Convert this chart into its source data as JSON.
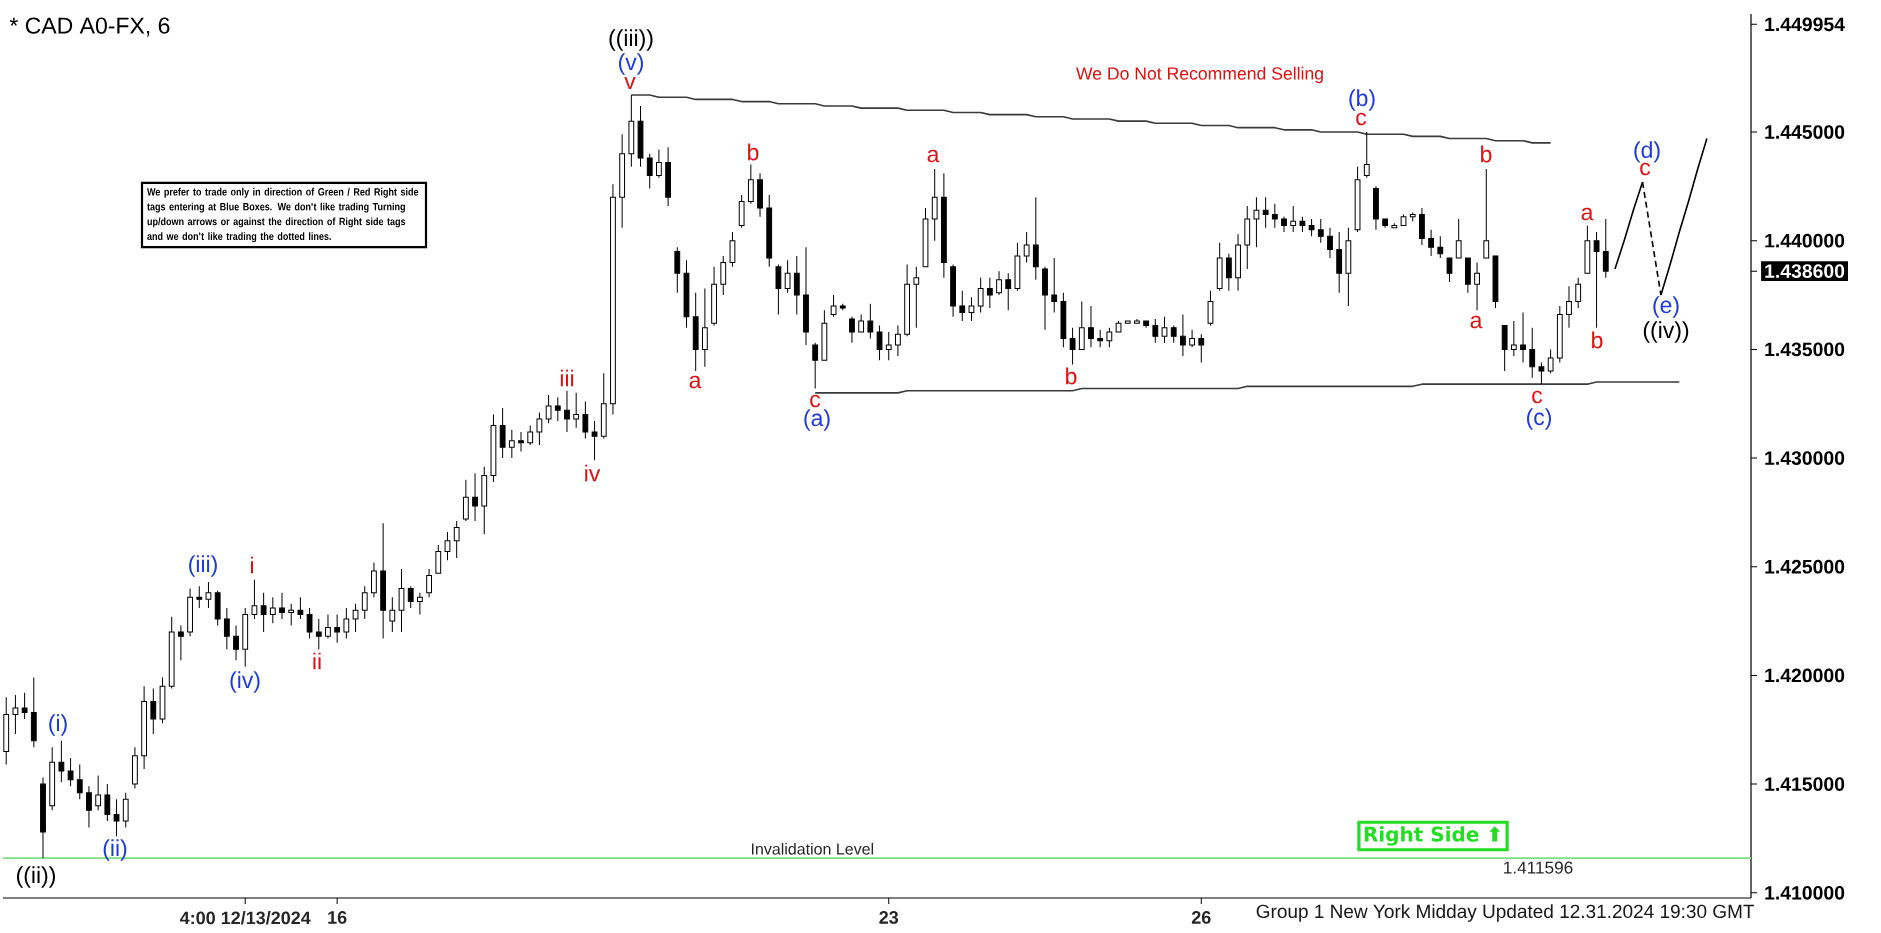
{
  "chart_data": {
    "type": "candlestick",
    "title": "* CAD A0-FX, 6",
    "color": "#000000",
    "categories": [
      null,
      null,
      null,
      null,
      null,
      null,
      null,
      null,
      null,
      null,
      null,
      null,
      null,
      null,
      null,
      null,
      null,
      null,
      null,
      null,
      null,
      null,
      null,
      null,
      null,
      null,
      "4:00 12/13/2024",
      null,
      null,
      null,
      null,
      null,
      null,
      null,
      null,
      null,
      "16",
      null,
      null,
      null,
      null,
      null,
      null,
      null,
      null,
      null,
      null,
      null,
      null,
      null,
      null,
      null,
      null,
      null,
      null,
      null,
      null,
      null,
      null,
      null,
      null,
      null,
      null,
      null,
      null,
      null,
      null,
      null,
      null,
      null,
      null,
      null,
      null,
      null,
      null,
      null,
      null,
      null,
      null,
      null,
      null,
      null,
      null,
      null,
      null,
      null,
      null,
      null,
      null,
      null,
      null,
      null,
      null,
      null,
      null,
      null,
      "23",
      null,
      null,
      null,
      null,
      null,
      null,
      null,
      null,
      null,
      null,
      null,
      null,
      null,
      null,
      null,
      null,
      null,
      null,
      null,
      null,
      null,
      null,
      null,
      null,
      null,
      null,
      null,
      null,
      null,
      null,
      null,
      null,
      null,
      "26",
      null,
      null,
      null,
      null,
      null,
      null,
      null,
      null,
      null,
      null,
      null,
      null,
      null,
      null,
      null,
      null,
      null,
      null,
      null,
      null,
      null,
      null,
      null,
      null,
      null,
      null,
      null,
      null,
      null,
      null,
      null,
      null,
      null,
      null,
      null,
      null,
      null,
      null,
      null,
      null,
      null,
      null,
      null,
      null,
      null,
      null,
      null,
      null,
      null,
      null,
      null,
      null,
      null,
      null,
      null,
      null,
      null,
      null,
      null
    ],
    "ohlc": [
      [
        1.4165,
        1.419,
        1.4159,
        1.4182
      ],
      [
        1.4182,
        1.4191,
        1.4173,
        1.4185
      ],
      [
        1.4185,
        1.4192,
        1.418,
        1.4183
      ],
      [
        1.4183,
        1.4199,
        1.4167,
        1.417
      ],
      [
        1.415,
        1.4153,
        1.4116,
        1.4128
      ],
      [
        1.414,
        1.4167,
        1.4138,
        1.416
      ],
      [
        1.416,
        1.417,
        1.4151,
        1.4156
      ],
      [
        1.4156,
        1.4162,
        1.4149,
        1.4152
      ],
      [
        1.4152,
        1.4159,
        1.4143,
        1.4146
      ],
      [
        1.4146,
        1.4149,
        1.413,
        1.4138
      ],
      [
        1.414,
        1.4154,
        1.4138,
        1.4145
      ],
      [
        1.4145,
        1.415,
        1.4133,
        1.4136
      ],
      [
        1.4136,
        1.4143,
        1.4126,
        1.4133
      ],
      [
        1.4133,
        1.4146,
        1.413,
        1.4143
      ],
      [
        1.415,
        1.4167,
        1.4148,
        1.4163
      ],
      [
        1.4163,
        1.4195,
        1.4157,
        1.4188
      ],
      [
        1.4188,
        1.4194,
        1.4173,
        1.418
      ],
      [
        1.418,
        1.4199,
        1.4178,
        1.4195
      ],
      [
        1.4195,
        1.4227,
        1.4194,
        1.422
      ],
      [
        1.422,
        1.4223,
        1.4207,
        1.4218
      ],
      [
        1.422,
        1.424,
        1.4218,
        1.4236
      ],
      [
        1.4236,
        1.4241,
        1.4231,
        1.4235
      ],
      [
        1.4235,
        1.4243,
        1.4231,
        1.4238
      ],
      [
        1.4238,
        1.4239,
        1.4223,
        1.4226
      ],
      [
        1.4226,
        1.4231,
        1.4212,
        1.4218
      ],
      [
        1.4218,
        1.4223,
        1.4207,
        1.4212
      ],
      [
        1.4212,
        1.4231,
        1.4204,
        1.4228
      ],
      [
        1.4228,
        1.4244,
        1.4226,
        1.4232
      ],
      [
        1.4232,
        1.4238,
        1.422,
        1.4228
      ],
      [
        1.4228,
        1.4236,
        1.4224,
        1.4231
      ],
      [
        1.4231,
        1.4238,
        1.4226,
        1.4229
      ],
      [
        1.4229,
        1.4233,
        1.4223,
        1.423
      ],
      [
        1.423,
        1.4236,
        1.4226,
        1.4228
      ],
      [
        1.4228,
        1.4231,
        1.4217,
        1.422
      ],
      [
        1.422,
        1.4226,
        1.4212,
        1.4218
      ],
      [
        1.4218,
        1.4228,
        1.4217,
        1.4222
      ],
      [
        1.4222,
        1.4228,
        1.4215,
        1.422
      ],
      [
        1.422,
        1.4231,
        1.4217,
        1.4226
      ],
      [
        1.4226,
        1.4233,
        1.422,
        1.423
      ],
      [
        1.423,
        1.4241,
        1.4226,
        1.4238
      ],
      [
        1.4238,
        1.4252,
        1.4236,
        1.4248
      ],
      [
        1.4248,
        1.427,
        1.4217,
        1.423
      ],
      [
        1.4225,
        1.4236,
        1.422,
        1.423
      ],
      [
        1.423,
        1.4249,
        1.422,
        1.424
      ],
      [
        1.424,
        1.4241,
        1.4231,
        1.4234
      ],
      [
        1.4234,
        1.4238,
        1.4228,
        1.4236
      ],
      [
        1.4238,
        1.4249,
        1.4236,
        1.4246
      ],
      [
        1.4247,
        1.426,
        1.4247,
        1.4257
      ],
      [
        1.4257,
        1.4266,
        1.4253,
        1.4262
      ],
      [
        1.4262,
        1.4271,
        1.4254,
        1.4268
      ],
      [
        1.4272,
        1.429,
        1.4271,
        1.4282
      ],
      [
        1.4282,
        1.4293,
        1.4271,
        1.4278
      ],
      [
        1.4278,
        1.4296,
        1.4265,
        1.4292
      ],
      [
        1.4292,
        1.432,
        1.4289,
        1.4315
      ],
      [
        1.4315,
        1.4323,
        1.43,
        1.4305
      ],
      [
        1.4305,
        1.4313,
        1.43,
        1.4308
      ],
      [
        1.4308,
        1.4312,
        1.4303,
        1.4307
      ],
      [
        1.4307,
        1.4315,
        1.4306,
        1.4312
      ],
      [
        1.4312,
        1.4321,
        1.4306,
        1.4318
      ],
      [
        1.4318,
        1.4329,
        1.4316,
        1.4324
      ],
      [
        1.4324,
        1.4328,
        1.4317,
        1.4322
      ],
      [
        1.4322,
        1.4331,
        1.4312,
        1.4318
      ],
      [
        1.4318,
        1.433,
        1.4314,
        1.432
      ],
      [
        1.432,
        1.4326,
        1.4309,
        1.4312
      ],
      [
        1.4312,
        1.4317,
        1.4299,
        1.431
      ],
      [
        1.431,
        1.4339,
        1.4309,
        1.4325
      ],
      [
        1.4325,
        1.4426,
        1.432,
        1.442
      ],
      [
        1.442,
        1.4449,
        1.4406,
        1.444
      ],
      [
        1.444,
        1.4467,
        1.4434,
        1.4455
      ],
      [
        1.4455,
        1.4462,
        1.4434,
        1.4438
      ],
      [
        1.4438,
        1.444,
        1.4424,
        1.443
      ],
      [
        1.443,
        1.4442,
        1.4429,
        1.4436
      ],
      [
        1.4436,
        1.4443,
        1.4416,
        1.442
      ],
      [
        1.4395,
        1.4397,
        1.4376,
        1.4385
      ],
      [
        1.4385,
        1.4391,
        1.436,
        1.4365
      ],
      [
        1.4365,
        1.4376,
        1.434,
        1.435
      ],
      [
        1.435,
        1.4378,
        1.4342,
        1.436
      ],
      [
        1.4362,
        1.4388,
        1.4361,
        1.438
      ],
      [
        1.438,
        1.4393,
        1.4375,
        1.439
      ],
      [
        1.439,
        1.4404,
        1.4388,
        1.44
      ],
      [
        1.4407,
        1.4421,
        1.4406,
        1.4418
      ],
      [
        1.4418,
        1.4435,
        1.4417,
        1.4428
      ],
      [
        1.4428,
        1.4431,
        1.4411,
        1.4415
      ],
      [
        1.4415,
        1.4421,
        1.4388,
        1.4392
      ],
      [
        1.4388,
        1.4389,
        1.4366,
        1.4378
      ],
      [
        1.4378,
        1.4391,
        1.4376,
        1.4385
      ],
      [
        1.4385,
        1.4393,
        1.4366,
        1.4375
      ],
      [
        1.4375,
        1.4397,
        1.4352,
        1.4358
      ],
      [
        1.4352,
        1.4353,
        1.4332,
        1.4345
      ],
      [
        1.4345,
        1.4368,
        1.4345,
        1.4362
      ],
      [
        1.4366,
        1.4375,
        1.4365,
        1.437
      ],
      [
        1.437,
        1.4371,
        1.4368,
        1.4369
      ],
      [
        1.4364,
        1.4365,
        1.4353,
        1.4358
      ],
      [
        1.4358,
        1.4366,
        1.4358,
        1.4363
      ],
      [
        1.4363,
        1.4371,
        1.4355,
        1.4358
      ],
      [
        1.4358,
        1.4361,
        1.4345,
        1.435
      ],
      [
        1.435,
        1.4358,
        1.4345,
        1.4352
      ],
      [
        1.4352,
        1.4361,
        1.4347,
        1.4357
      ],
      [
        1.4357,
        1.4389,
        1.4356,
        1.438
      ],
      [
        1.438,
        1.4388,
        1.436,
        1.4383
      ],
      [
        1.4388,
        1.4415,
        1.4388,
        1.441
      ],
      [
        1.441,
        1.4433,
        1.44,
        1.442
      ],
      [
        1.442,
        1.4431,
        1.4383,
        1.439
      ],
      [
        1.4388,
        1.4389,
        1.4365,
        1.437
      ],
      [
        1.437,
        1.4377,
        1.4363,
        1.4367
      ],
      [
        1.4367,
        1.4374,
        1.4363,
        1.437
      ],
      [
        1.437,
        1.4383,
        1.4367,
        1.4378
      ],
      [
        1.4378,
        1.4383,
        1.4369,
        1.4375
      ],
      [
        1.4376,
        1.4386,
        1.4375,
        1.4382
      ],
      [
        1.4382,
        1.4385,
        1.4368,
        1.4378
      ],
      [
        1.4378,
        1.4399,
        1.4377,
        1.4393
      ],
      [
        1.4393,
        1.4404,
        1.439,
        1.4398
      ],
      [
        1.4398,
        1.442,
        1.4382,
        1.4388
      ],
      [
        1.4387,
        1.4388,
        1.4359,
        1.4375
      ],
      [
        1.4375,
        1.4392,
        1.4367,
        1.4372
      ],
      [
        1.4372,
        1.4376,
        1.4351,
        1.4355
      ],
      [
        1.4355,
        1.436,
        1.4343,
        1.435
      ],
      [
        1.435,
        1.4372,
        1.435,
        1.436
      ],
      [
        1.436,
        1.437,
        1.4351,
        1.4355
      ],
      [
        1.4355,
        1.4359,
        1.4351,
        1.4354
      ],
      [
        1.4354,
        1.436,
        1.4351,
        1.4358
      ],
      [
        1.4358,
        1.4363,
        1.4358,
        1.4362
      ],
      [
        1.4362,
        1.4363,
        1.4362,
        1.4363
      ],
      [
        1.4362,
        1.4364,
        1.4362,
        1.4363
      ],
      [
        1.4363,
        1.4363,
        1.436,
        1.4361
      ],
      [
        1.4361,
        1.4364,
        1.4353,
        1.4356
      ],
      [
        1.4356,
        1.4365,
        1.4353,
        1.436
      ],
      [
        1.436,
        1.4361,
        1.4353,
        1.4356
      ],
      [
        1.4356,
        1.4366,
        1.4347,
        1.4352
      ],
      [
        1.4352,
        1.4359,
        1.4351,
        1.4355
      ],
      [
        1.4355,
        1.4357,
        1.4344,
        1.4352
      ],
      [
        1.4362,
        1.4377,
        1.4361,
        1.4372
      ],
      [
        1.4378,
        1.4399,
        1.4377,
        1.4392
      ],
      [
        1.4392,
        1.4394,
        1.4377,
        1.4383
      ],
      [
        1.4383,
        1.4403,
        1.4377,
        1.4398
      ],
      [
        1.4398,
        1.4416,
        1.4387,
        1.441
      ],
      [
        1.441,
        1.442,
        1.4397,
        1.4414
      ],
      [
        1.4414,
        1.442,
        1.4406,
        1.4412
      ],
      [
        1.4412,
        1.4417,
        1.4406,
        1.441
      ],
      [
        1.441,
        1.4411,
        1.4404,
        1.4407
      ],
      [
        1.4407,
        1.4416,
        1.4404,
        1.4409
      ],
      [
        1.4409,
        1.4411,
        1.4404,
        1.4407
      ],
      [
        1.4407,
        1.441,
        1.4402,
        1.4405
      ],
      [
        1.4405,
        1.441,
        1.4399,
        1.4402
      ],
      [
        1.4402,
        1.4406,
        1.4392,
        1.4396
      ],
      [
        1.4396,
        1.4404,
        1.4376,
        1.4385
      ],
      [
        1.4385,
        1.4406,
        1.437,
        1.44
      ],
      [
        1.4405,
        1.4434,
        1.4404,
        1.4428
      ],
      [
        1.443,
        1.445,
        1.4429,
        1.4435
      ],
      [
        1.4424,
        1.4425,
        1.4405,
        1.441
      ],
      [
        1.441,
        1.441,
        1.4406,
        1.4407
      ],
      [
        1.4406,
        1.4408,
        1.4406,
        1.4407
      ],
      [
        1.4407,
        1.4412,
        1.4407,
        1.4411
      ],
      [
        1.4411,
        1.4413,
        1.4409,
        1.4412
      ],
      [
        1.4412,
        1.4415,
        1.4398,
        1.4401
      ],
      [
        1.4401,
        1.4405,
        1.4393,
        1.4397
      ],
      [
        1.4397,
        1.4402,
        1.4392,
        1.4394
      ],
      [
        1.4392,
        1.4392,
        1.4381,
        1.4385
      ],
      [
        1.4392,
        1.441,
        1.4392,
        1.44
      ],
      [
        1.4392,
        1.4392,
        1.4376,
        1.438
      ],
      [
        1.438,
        1.439,
        1.4368,
        1.4385
      ],
      [
        1.4392,
        1.4433,
        1.4392,
        1.44
      ],
      [
        1.4393,
        1.4393,
        1.4369,
        1.4372
      ],
      [
        1.4361,
        1.4361,
        1.434,
        1.435
      ],
      [
        1.435,
        1.4363,
        1.4347,
        1.4352
      ],
      [
        1.4352,
        1.4367,
        1.4344,
        1.435
      ],
      [
        1.435,
        1.436,
        1.4337,
        1.4342
      ],
      [
        1.4342,
        1.4344,
        1.4334,
        1.434
      ],
      [
        1.434,
        1.435,
        1.4339,
        1.4346
      ],
      [
        1.4346,
        1.437,
        1.4344,
        1.4366
      ],
      [
        1.4366,
        1.4379,
        1.436,
        1.4372
      ],
      [
        1.4372,
        1.4383,
        1.4369,
        1.438
      ],
      [
        1.4385,
        1.4407,
        1.4385,
        1.44
      ],
      [
        1.44,
        1.4404,
        1.436,
        1.4395
      ],
      [
        1.4395,
        1.441,
        1.4383,
        1.4386
      ],
      null,
      null,
      null,
      null,
      null,
      null,
      null,
      null,
      null,
      null,
      null,
      null,
      null,
      null,
      null
    ],
    "series": [
      {
        "type": "line",
        "color": "#3a3a3a",
        "values": [
          null,
          null,
          null,
          null,
          null,
          null,
          null,
          null,
          null,
          null,
          null,
          null,
          null,
          null,
          null,
          null,
          null,
          null,
          null,
          null,
          null,
          null,
          null,
          null,
          null,
          null,
          null,
          null,
          null,
          null,
          null,
          null,
          null,
          null,
          null,
          null,
          null,
          null,
          null,
          null,
          null,
          null,
          null,
          null,
          null,
          null,
          null,
          null,
          null,
          null,
          null,
          null,
          null,
          null,
          null,
          null,
          null,
          null,
          null,
          null,
          null,
          null,
          null,
          null,
          null,
          null,
          null,
          null,
          1.4467,
          1.4467,
          1.4467,
          1.4466,
          1.4466,
          1.4466,
          1.4466,
          1.4465,
          1.4465,
          1.4465,
          1.4465,
          1.4465,
          1.4464,
          1.4464,
          1.4464,
          1.4464,
          1.4463,
          1.4463,
          1.4463,
          1.4463,
          1.4463,
          1.4462,
          1.4462,
          1.4462,
          1.4462,
          1.4461,
          1.4461,
          1.4461,
          1.4461,
          1.4461,
          1.446,
          1.446,
          1.446,
          1.446,
          1.446,
          1.4459,
          1.4459,
          1.4459,
          1.4459,
          1.4458,
          1.4458,
          1.4458,
          1.4458,
          1.4458,
          1.4457,
          1.4457,
          1.4457,
          1.4457,
          1.4456,
          1.4456,
          1.4456,
          1.4456,
          1.4456,
          1.4455,
          1.4455,
          1.4455,
          1.4455,
          1.4454,
          1.4454,
          1.4454,
          1.4454,
          1.4454,
          1.4453,
          1.4453,
          1.4453,
          1.4453,
          1.4452,
          1.4452,
          1.4452,
          1.4452,
          1.4452,
          1.4451,
          1.4451,
          1.4451,
          1.4451,
          1.445,
          1.445,
          1.445,
          1.445,
          1.445,
          1.4449,
          1.4449,
          1.4449,
          1.4449,
          1.4449,
          1.4448,
          1.4448,
          1.4448,
          1.4448,
          1.4447,
          1.4447,
          1.4447,
          1.4447,
          1.4447,
          1.4446,
          1.4446,
          1.4446,
          1.4446,
          1.4445,
          1.4445,
          1.4445,
          null,
          null,
          null,
          null,
          null,
          null,
          null,
          null,
          null,
          null,
          null,
          null,
          null,
          null,
          null,
          null,
          null,
          null,
          null,
          null,
          null
        ]
      },
      {
        "type": "line",
        "color": "#3a3a3a",
        "values": [
          null,
          null,
          null,
          null,
          null,
          null,
          null,
          null,
          null,
          null,
          null,
          null,
          null,
          null,
          null,
          null,
          null,
          null,
          null,
          null,
          null,
          null,
          null,
          null,
          null,
          null,
          null,
          null,
          null,
          null,
          null,
          null,
          null,
          null,
          null,
          null,
          null,
          null,
          null,
          null,
          null,
          null,
          null,
          null,
          null,
          null,
          null,
          null,
          null,
          null,
          null,
          null,
          null,
          null,
          null,
          null,
          null,
          null,
          null,
          null,
          null,
          null,
          null,
          null,
          null,
          null,
          null,
          null,
          null,
          null,
          null,
          null,
          null,
          null,
          null,
          null,
          null,
          null,
          null,
          null,
          null,
          null,
          null,
          null,
          null,
          null,
          null,
          null,
          1.433,
          1.433,
          1.433,
          1.433,
          1.433,
          1.433,
          1.433,
          1.433,
          1.433,
          1.433,
          1.4331,
          1.4331,
          1.4331,
          1.4331,
          1.4331,
          1.4331,
          1.4331,
          1.4331,
          1.4331,
          1.4331,
          1.4331,
          1.4331,
          1.4331,
          1.4331,
          1.4331,
          1.4331,
          1.4331,
          1.4331,
          1.4331,
          1.4332,
          1.4332,
          1.4332,
          1.4332,
          1.4332,
          1.4332,
          1.4332,
          1.4332,
          1.4332,
          1.4332,
          1.4332,
          1.4332,
          1.4332,
          1.4332,
          1.4332,
          1.4332,
          1.4332,
          1.4332,
          1.4333,
          1.4333,
          1.4333,
          1.4333,
          1.4333,
          1.4333,
          1.4333,
          1.4333,
          1.4333,
          1.4333,
          1.4333,
          1.4333,
          1.4333,
          1.4333,
          1.4333,
          1.4333,
          1.4333,
          1.4333,
          1.4333,
          1.4334,
          1.4334,
          1.4334,
          1.4334,
          1.4334,
          1.4334,
          1.4334,
          1.4334,
          1.4334,
          1.4334,
          1.4334,
          1.4334,
          1.4334,
          1.4334,
          1.4334,
          1.4334,
          1.4334,
          1.4334,
          1.4334,
          1.4335,
          1.4335,
          1.4335,
          1.4335,
          1.4335,
          1.4335,
          1.4335,
          1.4335,
          1.4335,
          1.4335,
          null,
          null,
          null,
          null,
          null,
          null,
          null
        ]
      },
      {
        "type": "line",
        "color": "#000000",
        "values": [
          null,
          null,
          null,
          null,
          null,
          null,
          null,
          null,
          null,
          null,
          null,
          null,
          null,
          null,
          null,
          null,
          null,
          null,
          null,
          null,
          null,
          null,
          null,
          null,
          null,
          null,
          null,
          null,
          null,
          null,
          null,
          null,
          null,
          null,
          null,
          null,
          null,
          null,
          null,
          null,
          null,
          null,
          null,
          null,
          null,
          null,
          null,
          null,
          null,
          null,
          null,
          null,
          null,
          null,
          null,
          null,
          null,
          null,
          null,
          null,
          null,
          null,
          null,
          null,
          null,
          null,
          null,
          null,
          null,
          null,
          null,
          null,
          null,
          null,
          null,
          null,
          null,
          null,
          null,
          null,
          null,
          null,
          null,
          null,
          null,
          null,
          null,
          null,
          null,
          null,
          null,
          null,
          null,
          null,
          null,
          null,
          null,
          null,
          null,
          null,
          null,
          null,
          null,
          null,
          null,
          null,
          null,
          null,
          null,
          null,
          null,
          null,
          null,
          null,
          null,
          null,
          null,
          null,
          null,
          null,
          null,
          null,
          null,
          null,
          null,
          null,
          null,
          null,
          null,
          null,
          null,
          null,
          null,
          null,
          null,
          null,
          null,
          null,
          null,
          null,
          null,
          null,
          null,
          null,
          null,
          null,
          null,
          null,
          null,
          null,
          null,
          null,
          null,
          null,
          null,
          null,
          null,
          null,
          null,
          null,
          null,
          null,
          null,
          null,
          null,
          null,
          null,
          null,
          null,
          null,
          null,
          null,
          null,
          null,
          null,
          1.4387,
          1.44,
          1.4414,
          1.4427,
          null,
          null,
          null,
          null,
          null,
          null,
          null,
          null,
          null,
          null,
          null
        ]
      },
      {
        "type": "line",
        "color": "#000000",
        "line_style": "dashed",
        "values": [
          null,
          null,
          null,
          null,
          null,
          null,
          null,
          null,
          null,
          null,
          null,
          null,
          null,
          null,
          null,
          null,
          null,
          null,
          null,
          null,
          null,
          null,
          null,
          null,
          null,
          null,
          null,
          null,
          null,
          null,
          null,
          null,
          null,
          null,
          null,
          null,
          null,
          null,
          null,
          null,
          null,
          null,
          null,
          null,
          null,
          null,
          null,
          null,
          null,
          null,
          null,
          null,
          null,
          null,
          null,
          null,
          null,
          null,
          null,
          null,
          null,
          null,
          null,
          null,
          null,
          null,
          null,
          null,
          null,
          null,
          null,
          null,
          null,
          null,
          null,
          null,
          null,
          null,
          null,
          null,
          null,
          null,
          null,
          null,
          null,
          null,
          null,
          null,
          null,
          null,
          null,
          null,
          null,
          null,
          null,
          null,
          null,
          null,
          null,
          null,
          null,
          null,
          null,
          null,
          null,
          null,
          null,
          null,
          null,
          null,
          null,
          null,
          null,
          null,
          null,
          null,
          null,
          null,
          null,
          null,
          null,
          null,
          null,
          null,
          null,
          null,
          null,
          null,
          null,
          null,
          null,
          null,
          null,
          null,
          null,
          null,
          null,
          null,
          null,
          null,
          null,
          null,
          null,
          null,
          null,
          null,
          null,
          null,
          null,
          null,
          null,
          null,
          null,
          null,
          null,
          null,
          null,
          null,
          null,
          null,
          null,
          null,
          null,
          null,
          null,
          null,
          null,
          null,
          null,
          null,
          null,
          null,
          null,
          null,
          null,
          null,
          null,
          null,
          1.4427,
          1.4401,
          1.4375,
          null,
          null,
          null,
          null,
          null,
          null,
          null,
          null,
          null
        ]
      },
      {
        "type": "line",
        "color": "#000000",
        "values": [
          null,
          null,
          null,
          null,
          null,
          null,
          null,
          null,
          null,
          null,
          null,
          null,
          null,
          null,
          null,
          null,
          null,
          null,
          null,
          null,
          null,
          null,
          null,
          null,
          null,
          null,
          null,
          null,
          null,
          null,
          null,
          null,
          null,
          null,
          null,
          null,
          null,
          null,
          null,
          null,
          null,
          null,
          null,
          null,
          null,
          null,
          null,
          null,
          null,
          null,
          null,
          null,
          null,
          null,
          null,
          null,
          null,
          null,
          null,
          null,
          null,
          null,
          null,
          null,
          null,
          null,
          null,
          null,
          null,
          null,
          null,
          null,
          null,
          null,
          null,
          null,
          null,
          null,
          null,
          null,
          null,
          null,
          null,
          null,
          null,
          null,
          null,
          null,
          null,
          null,
          null,
          null,
          null,
          null,
          null,
          null,
          null,
          null,
          null,
          null,
          null,
          null,
          null,
          null,
          null,
          null,
          null,
          null,
          null,
          null,
          null,
          null,
          null,
          null,
          null,
          null,
          null,
          null,
          null,
          null,
          null,
          null,
          null,
          null,
          null,
          null,
          null,
          null,
          null,
          null,
          null,
          null,
          null,
          null,
          null,
          null,
          null,
          null,
          null,
          null,
          null,
          null,
          null,
          null,
          null,
          null,
          null,
          null,
          null,
          null,
          null,
          null,
          null,
          null,
          null,
          null,
          null,
          null,
          null,
          null,
          null,
          null,
          null,
          null,
          null,
          null,
          null,
          null,
          null,
          null,
          null,
          null,
          null,
          null,
          null,
          null,
          null,
          null,
          null,
          null,
          1.4375,
          1.4389,
          1.4404,
          1.4418,
          1.4433,
          1.4447,
          null,
          null,
          null,
          null
        ]
      }
    ],
    "ylim": [
      1.40976,
      1.45043
    ],
    "yticks": [
      {
        "value": 1.41,
        "label": "1.410000"
      },
      {
        "value": 1.415,
        "label": "1.415000"
      },
      {
        "value": 1.42,
        "label": "1.420000"
      },
      {
        "value": 1.425,
        "label": "1.425000"
      },
      {
        "value": 1.43,
        "label": "1.430000"
      },
      {
        "value": 1.435,
        "label": "1.435000"
      },
      {
        "value": 1.4386,
        "label": "1.438600"
      },
      {
        "value": 1.44,
        "label": "1.440000"
      },
      {
        "value": 1.445,
        "label": "1.445000"
      },
      {
        "value": 1.449954,
        "label": "1.449954"
      }
    ],
    "ref_lines": [
      {
        "axis": "y",
        "value": 1.411596,
        "label": "Invalidation Level",
        "color": "#7fe07f"
      }
    ],
    "annotations": [
      "We Do Not Recommend Selling",
      "We prefer to trade only in direction of Green / Red Right side tags entering at Blue Boxes. We don't like trading Turning up/down arrows or against the direction of Right side tags and we don't like trading the dotted lines.",
      "Right Side ⬆",
      "Group 1 New York Midday Updated 12.31.2024 19:30 GMT",
      {
        "text": "1.411596",
        "y": 1.411596
      },
      "((ii))",
      "((iii))",
      "((iv))",
      "(i)",
      "(ii)",
      "(iii)",
      "(iv)",
      "(v)",
      "(a)",
      "(b)",
      "(c)",
      {
        "text": "(d)",
        "y": 1.4427
      },
      "(e)",
      "i",
      "ii",
      "iii",
      "iv",
      "v",
      "a",
      "b",
      "c",
      "a",
      "b",
      "c",
      "a",
      "b",
      "c",
      "a",
      "b",
      "c"
    ]
  }
}
